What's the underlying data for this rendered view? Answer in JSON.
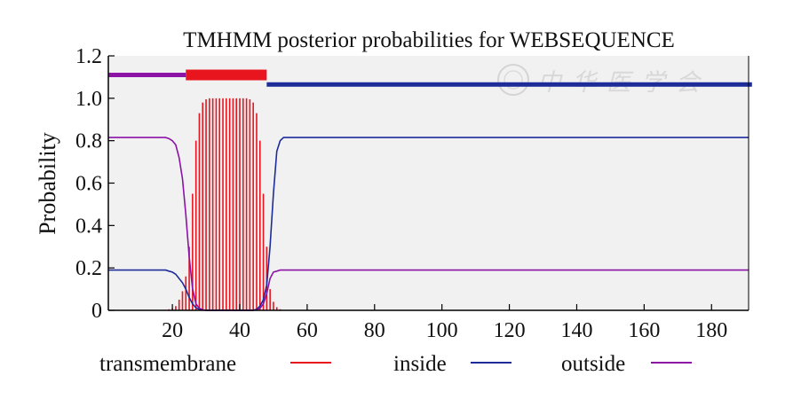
{
  "chart_data": {
    "type": "line",
    "title": "TMHMM  posterior  probabilities for WEBSEQUENCE",
    "ylabel": "Probability",
    "xlabel": "",
    "xlim": [
      1,
      191
    ],
    "ylim": [
      0,
      1.2
    ],
    "xticks": [
      20,
      40,
      60,
      80,
      100,
      120,
      140,
      160,
      180
    ],
    "yticks": [
      "0",
      "0.2",
      "0.4",
      "0.6",
      "0.8",
      "1.0",
      "1.2"
    ],
    "grid": false,
    "legend_position": "bottom",
    "legend": [
      "transmembrane",
      "inside",
      "outside"
    ],
    "colors": {
      "transmembrane": "#e8141e",
      "inside": "#1e2c9a",
      "outside": "#8c12a6",
      "plot_bg": "#f1f1f1",
      "axes": "#000000"
    },
    "series": [
      {
        "name": "transmembrane",
        "style": "bars",
        "color": "#e8141e",
        "x": [
          18,
          19,
          20,
          21,
          22,
          23,
          24,
          25,
          26,
          27,
          28,
          29,
          30,
          31,
          32,
          33,
          34,
          35,
          36,
          37,
          38,
          39,
          40,
          41,
          42,
          43,
          44,
          45,
          46,
          47,
          48,
          49,
          50,
          51,
          52
        ],
        "values": [
          0.002,
          0.005,
          0.01,
          0.02,
          0.05,
          0.09,
          0.16,
          0.3,
          0.55,
          0.8,
          0.93,
          0.98,
          0.995,
          1.0,
          1.0,
          1.0,
          1.0,
          1.0,
          1.0,
          1.0,
          1.0,
          1.0,
          1.0,
          1.0,
          1.0,
          0.995,
          0.98,
          0.93,
          0.8,
          0.55,
          0.3,
          0.1,
          0.04,
          0.015,
          0.005
        ]
      },
      {
        "name": "inside",
        "style": "line",
        "color": "#1e2c9a",
        "x": [
          1,
          18,
          19,
          20,
          21,
          22,
          23,
          24,
          25,
          26,
          27,
          28,
          29,
          30,
          44,
          45,
          46,
          47,
          48,
          49,
          50,
          51,
          52,
          53,
          191
        ],
        "values": [
          0.19,
          0.19,
          0.185,
          0.18,
          0.17,
          0.15,
          0.13,
          0.1,
          0.06,
          0.03,
          0.012,
          0.005,
          0.002,
          0,
          0,
          0.005,
          0.02,
          0.05,
          0.12,
          0.3,
          0.55,
          0.75,
          0.8,
          0.815,
          0.815
        ]
      },
      {
        "name": "outside",
        "style": "line",
        "color": "#8c12a6",
        "x": [
          1,
          18,
          19,
          20,
          21,
          22,
          23,
          24,
          25,
          26,
          27,
          28,
          29,
          30,
          44,
          45,
          46,
          47,
          48,
          49,
          50,
          51,
          52,
          53,
          191
        ],
        "values": [
          0.815,
          0.815,
          0.81,
          0.8,
          0.78,
          0.72,
          0.62,
          0.45,
          0.25,
          0.1,
          0.03,
          0.01,
          0.002,
          0,
          0,
          0.002,
          0.01,
          0.03,
          0.08,
          0.15,
          0.18,
          0.185,
          0.19,
          0.19,
          0.19
        ]
      }
    ],
    "topology": [
      {
        "region": "outside",
        "start": 1,
        "end": 23,
        "color": "#8c12a6",
        "level": 1.11
      },
      {
        "region": "transmembrane",
        "start": 24,
        "end": 47,
        "color": "#e8141e",
        "level": 1.11
      },
      {
        "region": "inside",
        "start": 48,
        "end": 191,
        "color": "#1e2c9a",
        "level": 1.065
      }
    ]
  },
  "watermark": "中华医学会"
}
